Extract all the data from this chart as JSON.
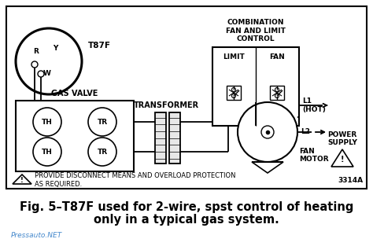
{
  "bg_color": "#ffffff",
  "line_color": "#000000",
  "title_line1": "Fig. 5–T87F used for 2-wire, spst control of heating",
  "title_line2": "only in a typical gas system.",
  "watermark": "Pressauto.NET",
  "watermark_color": "#4488cc",
  "diagram_code": "3314A",
  "label_t87f": "T87F",
  "label_gas_valve": "GAS VALVE",
  "label_transformer": "TRANSFORMER",
  "label_combination": "COMBINATION\nFAN AND LIMIT\nCONTROL",
  "label_limit": "LIMIT",
  "label_fan_ctrl": "FAN",
  "label_l1": "L1\n(HOT)",
  "label_l2": "L2",
  "label_power_supply": "POWER\nSUPPLY",
  "label_fan_motor": "FAN\nMOTOR",
  "label_th": "TH",
  "label_tr": "TR",
  "label_r": "R",
  "label_y": "Y",
  "label_w": "W",
  "warning_text1": "PROVIDE DISCONNECT MEANS AND OVERLOAD PROTECTION",
  "warning_text2": "AS REQUIRED.",
  "fig_fontsize": 10.5,
  "caption_fontsize": 10.5,
  "small_fontsize": 6.5,
  "tiny_fontsize": 5.5
}
